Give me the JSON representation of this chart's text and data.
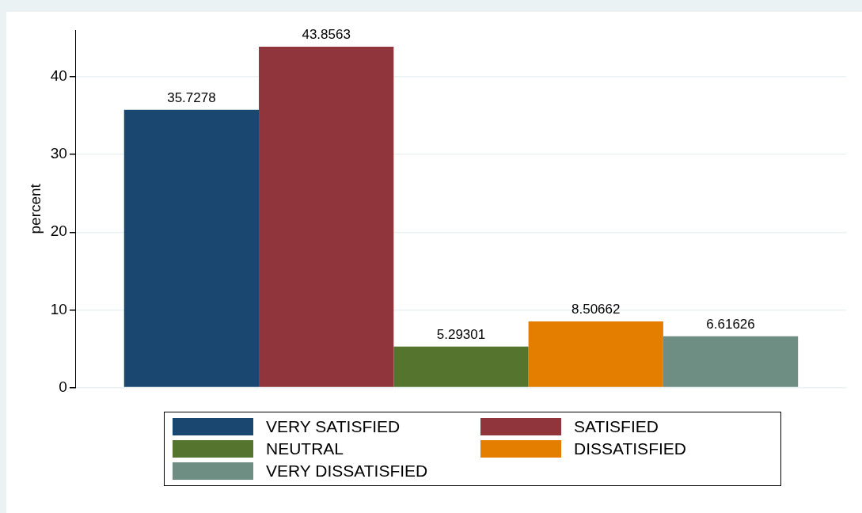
{
  "chart_data": {
    "type": "bar",
    "ylabel": "percent",
    "categories": [
      null
    ],
    "series": [
      {
        "name": "VERY SATISFIED",
        "color": "#1a476f",
        "values": [
          35.7278
        ]
      },
      {
        "name": "SATISFIED",
        "color": "#90353b",
        "values": [
          43.8563
        ]
      },
      {
        "name": "NEUTRAL",
        "color": "#55752f",
        "values": [
          5.29301
        ]
      },
      {
        "name": "DISSATISFIED",
        "color": "#e37e00",
        "values": [
          8.50662
        ]
      },
      {
        "name": "VERY DISSATISFIED",
        "color": "#6e8e84",
        "values": [
          6.61626
        ]
      }
    ],
    "ylim": [
      0,
      46
    ],
    "yticks": [
      0,
      10,
      20,
      30,
      40
    ],
    "grid": "y",
    "legend": "bottom",
    "data_labels": true
  }
}
